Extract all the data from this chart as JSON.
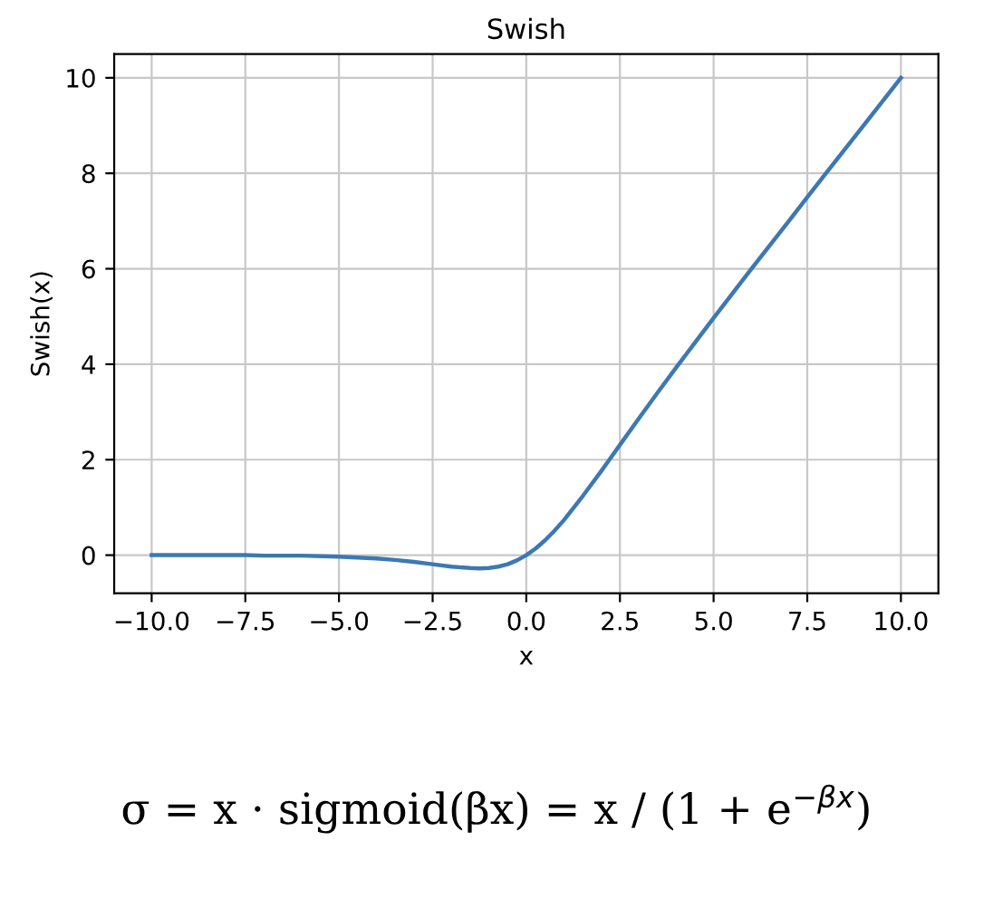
{
  "chart_data": {
    "type": "line",
    "title": "Swish",
    "xlabel": "x",
    "ylabel": "Swish(x)",
    "x": [
      -10,
      -9,
      -8,
      -7.5,
      -7,
      -6,
      -5,
      -4.5,
      -4,
      -3.5,
      -3,
      -2.5,
      -2,
      -1.5,
      -1.25,
      -1,
      -0.75,
      -0.5,
      -0.25,
      0,
      0.25,
      0.5,
      0.75,
      1,
      1.5,
      2,
      2.5,
      3,
      3.5,
      4,
      5,
      6,
      7,
      7.5,
      8,
      9,
      10
    ],
    "series": [
      {
        "color": "#3c78b4",
        "values": [
          0.0,
          0.0,
          0.0,
          0.0,
          -0.01,
          -0.01,
          -0.03,
          -0.05,
          -0.07,
          -0.1,
          -0.14,
          -0.19,
          -0.24,
          -0.27,
          -0.28,
          -0.27,
          -0.24,
          -0.19,
          -0.11,
          0.0,
          0.14,
          0.31,
          0.51,
          0.73,
          1.23,
          1.76,
          2.31,
          2.86,
          3.4,
          3.93,
          4.97,
          5.99,
          6.99,
          7.5,
          8.0,
          9.0,
          10.0
        ]
      }
    ],
    "xlim": [
      -11,
      11
    ],
    "ylim": [
      -0.8,
      10.5
    ],
    "xticks": [
      {
        "value": -10,
        "label": "−10.0"
      },
      {
        "value": -7.5,
        "label": "−7.5"
      },
      {
        "value": -5,
        "label": "−5.0"
      },
      {
        "value": -2.5,
        "label": "−2.5"
      },
      {
        "value": 0,
        "label": "0.0"
      },
      {
        "value": 2.5,
        "label": "2.5"
      },
      {
        "value": 5,
        "label": "5.0"
      },
      {
        "value": 7.5,
        "label": "7.5"
      },
      {
        "value": 10,
        "label": "10.0"
      }
    ],
    "yticks": [
      0,
      2,
      4,
      6,
      8,
      10
    ],
    "grid": true,
    "annotations": [
      "σ = x · sigmoid(βx) = x / (1 + e$^{−βx}$)"
    ]
  }
}
